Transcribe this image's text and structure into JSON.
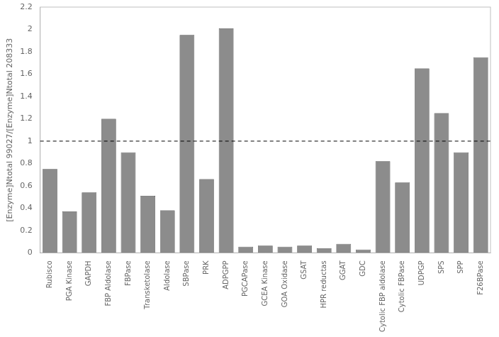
{
  "chart_data": {
    "type": "bar",
    "y_label": "[Enzyme]Ntotal 99027/[Enzyme]Ntotal 208333",
    "categories": [
      "Rubisco",
      "PGA Kinase",
      "GAPDH",
      "FBP Aldolase",
      "FBPase",
      "Transketolase",
      "Aldolase",
      "SBPase",
      "PRK",
      "ADPGPP",
      "PGCAPase",
      "GCEA Kinase",
      "GOA Oxidase",
      "GSAT",
      "HPR reductas",
      "GGAT",
      "GDC",
      "Cytolic FBP aldolase",
      "Cytolic FBPase",
      "UDPGP",
      "SPS",
      "SPP",
      "F26BPase"
    ],
    "values": [
      0.75,
      0.37,
      0.54,
      1.2,
      0.9,
      0.51,
      0.38,
      1.95,
      0.66,
      2.01,
      0.055,
      0.065,
      0.055,
      0.065,
      0.04,
      0.08,
      0.03,
      0.82,
      0.63,
      1.65,
      1.25,
      0.9,
      1.75
    ],
    "color": "#8c8c8c",
    "ylim": [
      0,
      2.2
    ],
    "yticks": [
      0,
      0.2,
      0.4,
      0.6,
      0.8,
      1,
      1.2,
      1.4,
      1.6,
      1.8,
      2,
      2.2
    ],
    "hline": 1,
    "grid": false
  }
}
